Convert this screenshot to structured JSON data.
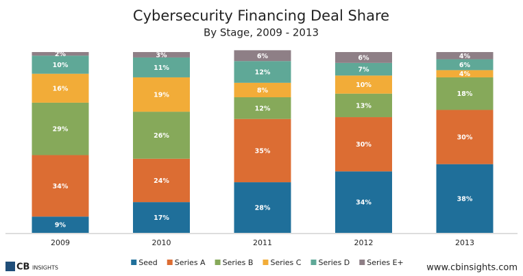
{
  "chart_data": {
    "type": "stacked_bar",
    "title": "Cybersecurity Financing Deal Share",
    "subtitle": "By Stage, 2009 - 2013",
    "categories": [
      "2009",
      "2010",
      "2011",
      "2012",
      "2013"
    ],
    "series": [
      {
        "name": "Seed",
        "color": "#1f6f9a",
        "values": [
          9,
          17,
          28,
          34,
          38
        ],
        "value_labels": [
          "9%",
          "17%",
          "28%",
          "34%",
          "38%"
        ]
      },
      {
        "name": "Series A",
        "color": "#dc6d33",
        "values": [
          34,
          24,
          35,
          30,
          30
        ],
        "value_labels": [
          "34%",
          "24%",
          "35%",
          "30%",
          "30%"
        ]
      },
      {
        "name": "Series B",
        "color": "#86a95a",
        "values": [
          29,
          26,
          12,
          13,
          18
        ],
        "value_labels": [
          "29%",
          "26%",
          "12%",
          "13%",
          "18%"
        ]
      },
      {
        "name": "Series C",
        "color": "#f2ac38",
        "values": [
          16,
          19,
          8,
          10,
          4
        ],
        "value_labels": [
          "16%",
          "19%",
          "8%",
          "10%",
          "4%"
        ]
      },
      {
        "name": "Series D",
        "color": "#5fa897",
        "values": [
          10,
          11,
          12,
          7,
          6
        ],
        "value_labels": [
          "10%",
          "11%",
          "12%",
          "7%",
          "6%"
        ]
      },
      {
        "name": "Series E+",
        "color": "#8e7f86",
        "values": [
          2,
          3,
          6,
          6,
          4
        ],
        "value_labels": [
          "2%",
          "3%",
          "6%",
          "6%",
          "4%"
        ]
      }
    ]
  },
  "footer": {
    "logo": "CB",
    "logo_sub": "INSIGHTS",
    "url": "www.cbinsights.com"
  }
}
